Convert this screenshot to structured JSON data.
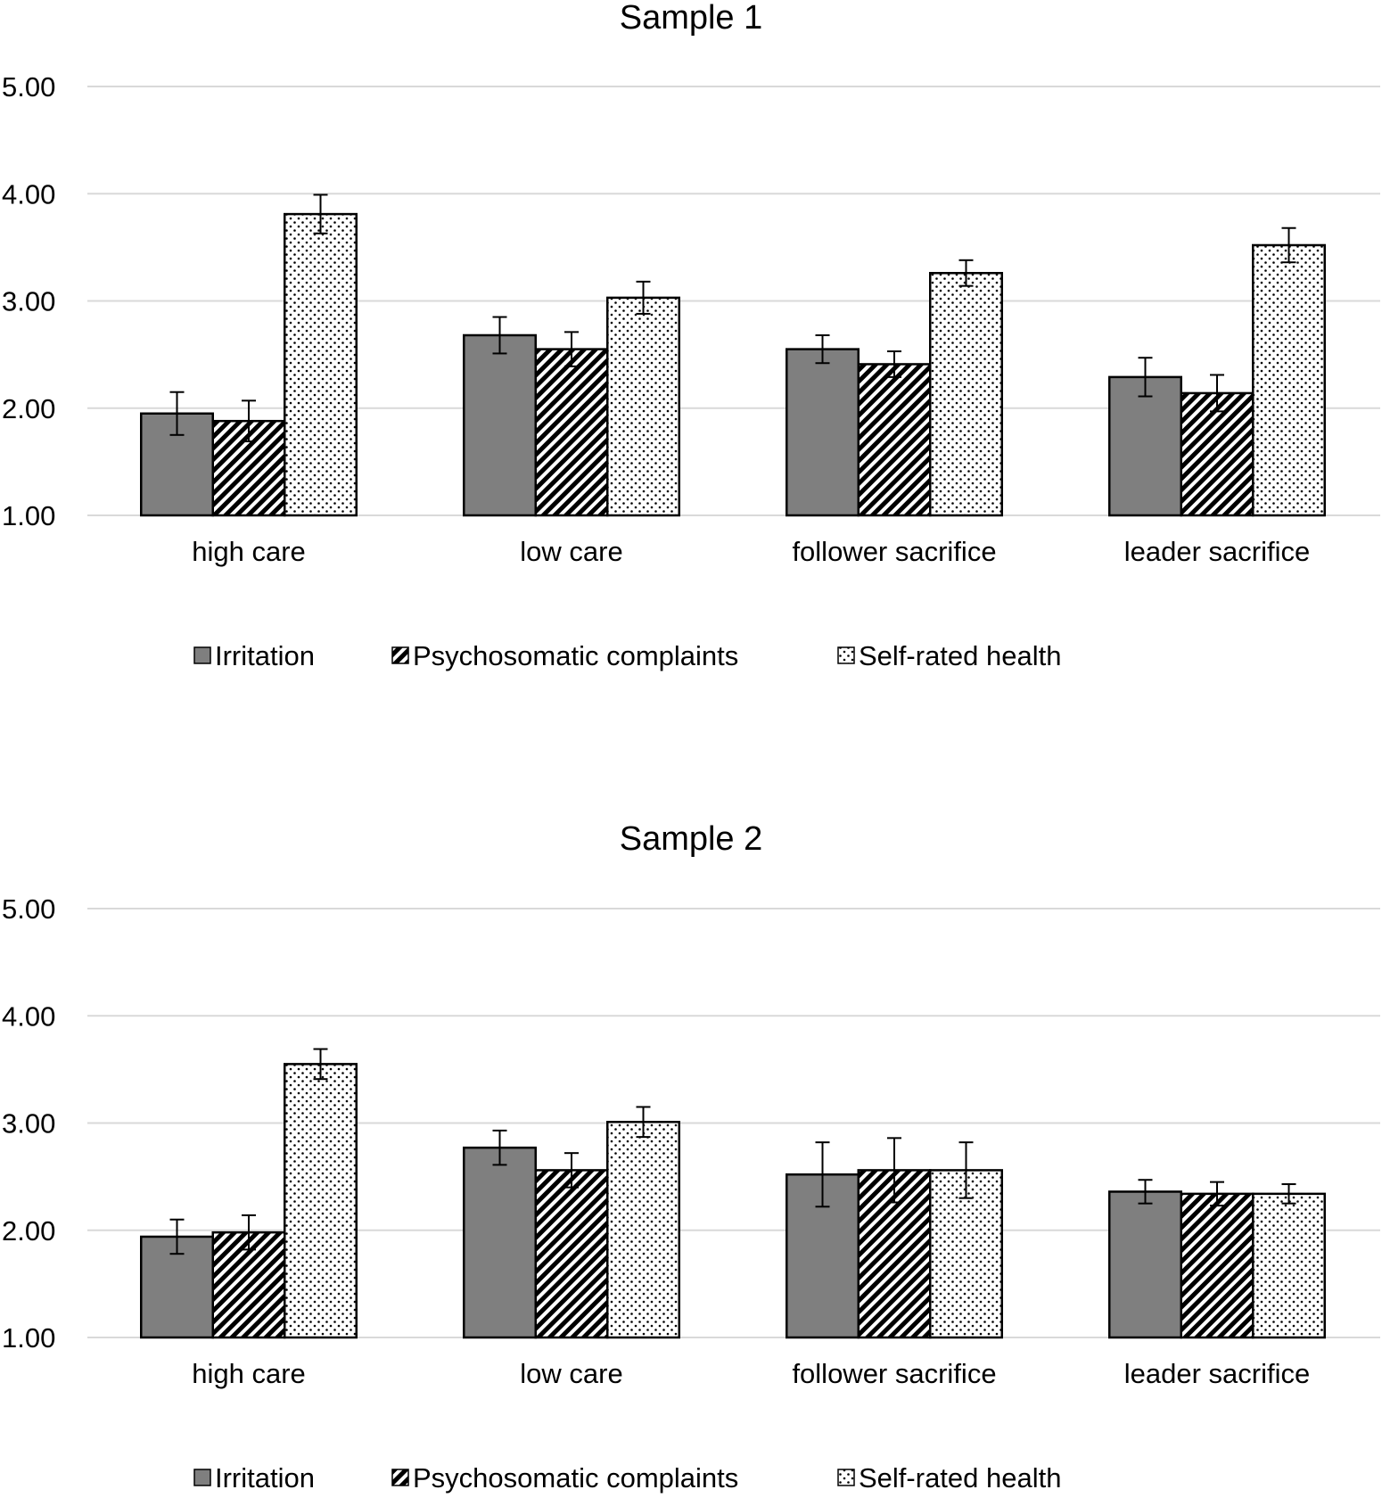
{
  "colors": {
    "irritation": "#7f7f7f",
    "grid": "#d9d9d9",
    "stroke": "#000000"
  },
  "chart_data": [
    {
      "type": "bar",
      "title": "Sample 1",
      "categories": [
        "high care",
        "low care",
        "follower sacrifice",
        "leader sacrifice"
      ],
      "ylim": [
        1,
        5
      ],
      "yticks": [
        "1.00",
        "2.00",
        "3.00",
        "4.00",
        "5.00"
      ],
      "series": [
        {
          "name": "Irritation",
          "pattern": "solid",
          "values": [
            1.95,
            2.68,
            2.55,
            2.29
          ],
          "errors": [
            0.2,
            0.17,
            0.13,
            0.18
          ]
        },
        {
          "name": "Psychosomatic complaints",
          "pattern": "hatch",
          "values": [
            1.88,
            2.55,
            2.41,
            2.14
          ],
          "errors": [
            0.19,
            0.16,
            0.12,
            0.17
          ]
        },
        {
          "name": "Self-rated health",
          "pattern": "dots",
          "values": [
            3.81,
            3.03,
            3.26,
            3.52
          ],
          "errors": [
            0.18,
            0.15,
            0.12,
            0.16
          ]
        }
      ],
      "legend": "bottom"
    },
    {
      "type": "bar",
      "title": "Sample 2",
      "categories": [
        "high care",
        "low care",
        "follower sacrifice",
        "leader sacrifice"
      ],
      "ylim": [
        1,
        5
      ],
      "yticks": [
        "1.00",
        "2.00",
        "3.00",
        "4.00",
        "5.00"
      ],
      "series": [
        {
          "name": "Irritation",
          "pattern": "solid",
          "values": [
            1.94,
            2.77,
            2.52,
            2.36
          ],
          "errors": [
            0.16,
            0.16,
            0.3,
            0.11
          ]
        },
        {
          "name": "Psychosomatic complaints",
          "pattern": "hatch",
          "values": [
            1.98,
            2.56,
            2.56,
            2.34
          ],
          "errors": [
            0.16,
            0.16,
            0.3,
            0.11
          ]
        },
        {
          "name": "Self-rated health",
          "pattern": "dots",
          "values": [
            3.55,
            3.01,
            2.56,
            2.34
          ],
          "errors": [
            0.14,
            0.14,
            0.26,
            0.09
          ]
        }
      ],
      "legend": "bottom"
    }
  ]
}
